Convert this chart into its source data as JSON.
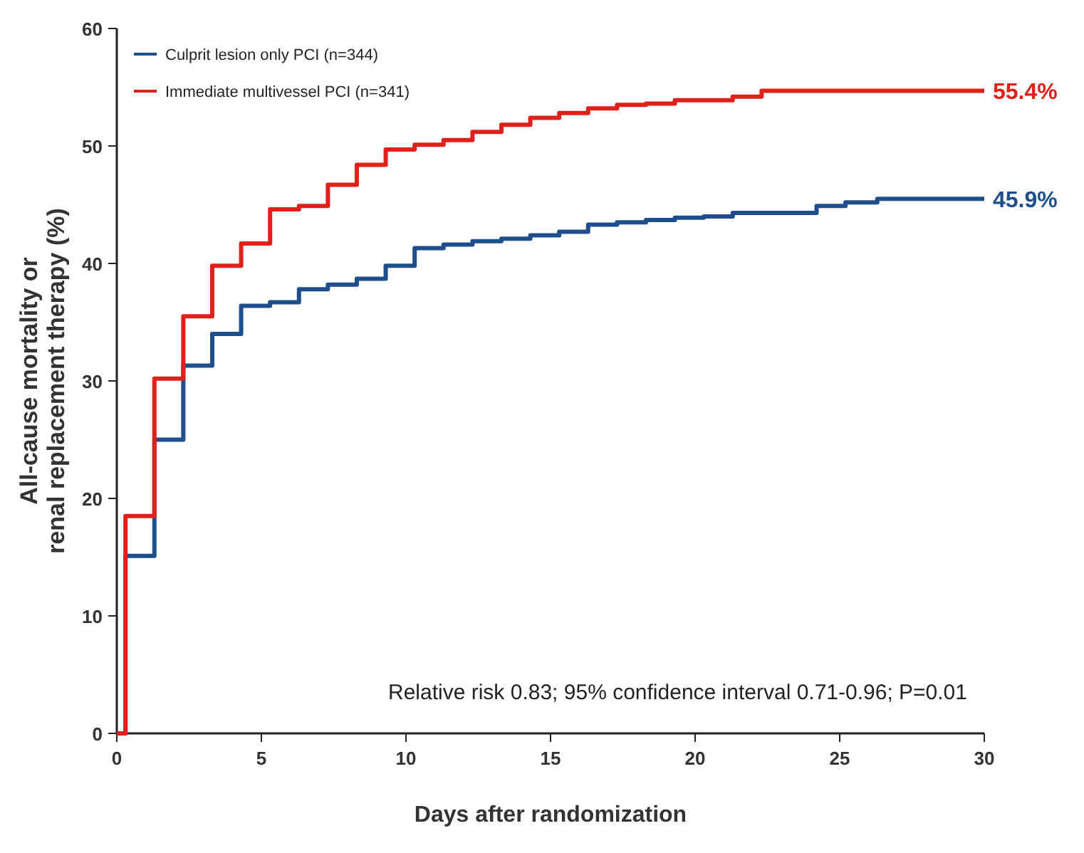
{
  "chart_data": {
    "type": "step",
    "xlabel": "Days after randomization",
    "ylabel": "All-cause mortality or\nrenal replacement therapy (%)",
    "xlim": [
      0,
      30
    ],
    "xticks": [
      0,
      5,
      10,
      15,
      20,
      25,
      30
    ],
    "ylim": [
      0,
      60
    ],
    "yticks": [
      0,
      10,
      20,
      30,
      40,
      50,
      60
    ],
    "grid": false,
    "legend": "top left",
    "line_style": "solid",
    "marker": "none",
    "series": [
      {
        "name": "Culprit lesion only PCI (n=344)",
        "color": "#1f4e8c",
        "x": [
          0,
          0.3,
          1.3,
          2.3,
          3.3,
          4.3,
          5.3,
          6.3,
          7.3,
          8.3,
          9.3,
          10.3,
          11.3,
          12.3,
          13.3,
          14.3,
          15.3,
          16.3,
          17.3,
          18.3,
          19.3,
          20.3,
          21.3,
          24.2,
          25.2,
          26.3,
          30
        ],
        "values": [
          0,
          15.1,
          25,
          31.3,
          34,
          36.4,
          36.7,
          37.8,
          38.2,
          38.7,
          39.8,
          41.3,
          41.6,
          41.9,
          42.1,
          42.4,
          42.7,
          43.3,
          43.5,
          43.7,
          43.9,
          44,
          44.3,
          44.9,
          45.2,
          45.5,
          45.5
        ]
      },
      {
        "name": "Immediate multivessel PCI (n=341)",
        "color": "#e0201b",
        "x": [
          0,
          0.3,
          1.3,
          2.3,
          3.3,
          4.3,
          5.3,
          6.3,
          7.3,
          8.3,
          9.3,
          10.3,
          11.3,
          12.3,
          13.3,
          14.3,
          15.3,
          16.3,
          17.3,
          18.3,
          19.3,
          21.3,
          22.3,
          30
        ],
        "values": [
          0,
          18.5,
          30.2,
          35.5,
          39.8,
          41.7,
          44.6,
          44.9,
          46.7,
          48.4,
          49.7,
          50.1,
          50.5,
          51.2,
          51.8,
          52.4,
          52.8,
          53.2,
          53.5,
          53.6,
          53.9,
          54.2,
          54.7,
          54.7
        ]
      }
    ],
    "annotations": [
      {
        "text": "55.4%",
        "x": 30,
        "y": 54.7
      },
      {
        "text": "45.9%",
        "x": 30,
        "y": 45.5
      },
      "Relative risk 0.83; 95% confidence interval 0.71-0.96; P=0.01"
    ]
  }
}
